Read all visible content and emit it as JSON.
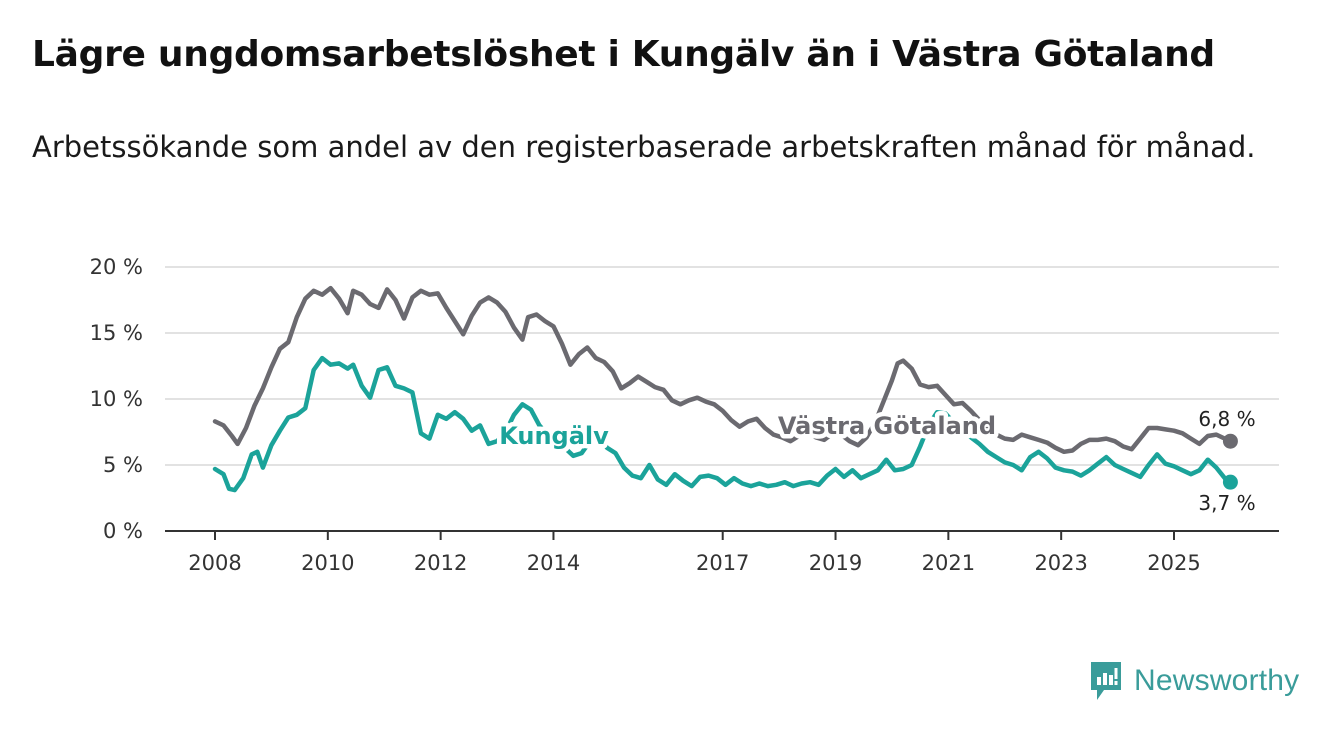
{
  "header": {
    "title": "Lägre ungdomsarbetslöshet i Kungälv än i Västra Götaland",
    "subtitle": "Arbetssökande som andel av den registerbaserade arbetskraften månad för månad."
  },
  "brand": {
    "name": "Newsworthy",
    "icon": "newsworthy-logo-icon",
    "color": "#3a9c9a"
  },
  "chart_data": {
    "type": "line",
    "title": "Lägre ungdomsarbetslöshet i Kungälv än i Västra Götaland",
    "subtitle": "Arbetssökande som andel av den registerbaserade arbetskraften månad för månad.",
    "xlabel": "",
    "ylabel": "",
    "xlim": [
      2008,
      2026.25
    ],
    "ylim": [
      0,
      20
    ],
    "y_ticks": [
      0,
      5,
      10,
      15,
      20
    ],
    "y_tick_labels": [
      "0 %",
      "5 %",
      "10 %",
      "15 %",
      "20 %"
    ],
    "x_ticks": [
      2008,
      2010,
      2012,
      2014,
      2017,
      2019,
      2021,
      2023,
      2025
    ],
    "x_tick_labels": [
      "2008",
      "2010",
      "2012",
      "2014",
      "2017",
      "2019",
      "2021",
      "2023",
      "2025"
    ],
    "grid": true,
    "series": [
      {
        "name": "Västra Götaland",
        "label": "Västra Götaland",
        "color": "#6b6a70",
        "end_label": "6,8 %",
        "x": [
          2008.0,
          2008.15,
          2008.3,
          2008.4,
          2008.55,
          2008.7,
          2008.85,
          2009.0,
          2009.15,
          2009.3,
          2009.45,
          2009.6,
          2009.75,
          2009.9,
          2010.05,
          2010.2,
          2010.35,
          2010.45,
          2010.6,
          2010.75,
          2010.9,
          2011.05,
          2011.2,
          2011.35,
          2011.5,
          2011.65,
          2011.8,
          2011.95,
          2012.1,
          2012.25,
          2012.4,
          2012.55,
          2012.7,
          2012.85,
          2013.0,
          2013.15,
          2013.3,
          2013.45,
          2013.55,
          2013.7,
          2013.85,
          2014.0,
          2014.15,
          2014.3,
          2014.45,
          2014.6,
          2014.75,
          2014.9,
          2015.05,
          2015.2,
          2015.35,
          2015.5,
          2015.65,
          2015.8,
          2015.95,
          2016.1,
          2016.25,
          2016.4,
          2016.55,
          2016.7,
          2016.85,
          2017.0,
          2017.15,
          2017.3,
          2017.45,
          2017.6,
          2017.75,
          2017.9,
          2018.05,
          2018.2,
          2018.35,
          2018.5,
          2018.65,
          2018.8,
          2018.95,
          2019.1,
          2019.25,
          2019.4,
          2019.55,
          2019.7,
          2019.85,
          2020.0,
          2020.1,
          2020.2,
          2020.35,
          2020.5,
          2020.65,
          2020.8,
          2020.95,
          2021.1,
          2021.25,
          2021.4,
          2021.55,
          2021.7,
          2021.85,
          2022.0,
          2022.15,
          2022.3,
          2022.45,
          2022.6,
          2022.75,
          2022.9,
          2023.05,
          2023.2,
          2023.35,
          2023.5,
          2023.65,
          2023.8,
          2023.95,
          2024.1,
          2024.25,
          2024.4,
          2024.55,
          2024.7,
          2024.85,
          2025.0,
          2025.15,
          2025.3,
          2025.45,
          2025.6,
          2025.75,
          2025.9,
          2026.0
        ],
        "values": [
          8.3,
          8.0,
          7.2,
          6.6,
          7.8,
          9.5,
          10.8,
          12.4,
          13.8,
          14.3,
          16.2,
          17.6,
          18.2,
          17.9,
          18.4,
          17.6,
          16.5,
          18.2,
          17.9,
          17.2,
          16.9,
          18.3,
          17.5,
          16.1,
          17.7,
          18.2,
          17.9,
          18.0,
          16.9,
          15.9,
          14.9,
          16.3,
          17.3,
          17.7,
          17.3,
          16.6,
          15.4,
          14.5,
          16.2,
          16.4,
          15.9,
          15.5,
          14.2,
          12.6,
          13.4,
          13.9,
          13.1,
          12.8,
          12.1,
          10.8,
          11.2,
          11.7,
          11.3,
          10.9,
          10.7,
          9.9,
          9.6,
          9.9,
          10.1,
          9.8,
          9.6,
          9.1,
          8.4,
          7.9,
          8.3,
          8.5,
          7.8,
          7.3,
          7.1,
          6.8,
          7.2,
          7.6,
          7.1,
          6.9,
          7.4,
          7.3,
          6.8,
          6.5,
          7.1,
          8.2,
          9.8,
          11.4,
          12.7,
          12.9,
          12.3,
          11.1,
          10.9,
          11.0,
          10.3,
          9.6,
          9.7,
          9.1,
          8.4,
          7.6,
          7.3,
          7.0,
          6.9,
          7.3,
          7.1,
          6.9,
          6.7,
          6.3,
          6.0,
          6.1,
          6.6,
          6.9,
          6.9,
          7.0,
          6.8,
          6.4,
          6.2,
          7.0,
          7.8,
          7.8,
          7.7,
          7.6,
          7.4,
          7.0,
          6.6,
          7.2,
          7.3,
          7.0,
          6.8
        ]
      },
      {
        "name": "Kungälv",
        "label": "Kungälv",
        "color": "#1ba39a",
        "end_label": "3,7 %",
        "x": [
          2008.0,
          2008.15,
          2008.25,
          2008.35,
          2008.5,
          2008.65,
          2008.75,
          2008.85,
          2009.0,
          2009.15,
          2009.3,
          2009.45,
          2009.6,
          2009.75,
          2009.9,
          2010.05,
          2010.2,
          2010.35,
          2010.45,
          2010.6,
          2010.75,
          2010.9,
          2011.05,
          2011.2,
          2011.35,
          2011.5,
          2011.65,
          2011.8,
          2011.95,
          2012.1,
          2012.25,
          2012.4,
          2012.55,
          2012.7,
          2012.85,
          2013.0,
          2013.15,
          2013.3,
          2013.45,
          2013.6,
          2013.75,
          2013.9,
          2014.05,
          2014.2,
          2014.35,
          2014.5,
          2014.65,
          2014.8,
          2014.95,
          2015.1,
          2015.25,
          2015.4,
          2015.55,
          2015.7,
          2015.85,
          2016.0,
          2016.15,
          2016.3,
          2016.45,
          2016.6,
          2016.75,
          2016.9,
          2017.05,
          2017.2,
          2017.35,
          2017.5,
          2017.65,
          2017.8,
          2017.95,
          2018.1,
          2018.25,
          2018.4,
          2018.55,
          2018.7,
          2018.85,
          2019.0,
          2019.15,
          2019.3,
          2019.45,
          2019.6,
          2019.75,
          2019.9,
          2020.05,
          2020.2,
          2020.35,
          2020.5,
          2020.65,
          2020.8,
          2020.95,
          2021.1,
          2021.25,
          2021.4,
          2021.55,
          2021.7,
          2021.85,
          2022.0,
          2022.15,
          2022.3,
          2022.45,
          2022.6,
          2022.75,
          2022.9,
          2023.05,
          2023.2,
          2023.35,
          2023.5,
          2023.65,
          2023.8,
          2023.95,
          2024.1,
          2024.25,
          2024.4,
          2024.55,
          2024.7,
          2024.85,
          2025.0,
          2025.15,
          2025.3,
          2025.45,
          2025.6,
          2025.75,
          2025.9,
          2026.0
        ],
        "values": [
          4.7,
          4.3,
          3.2,
          3.1,
          4.0,
          5.8,
          6.0,
          4.8,
          6.5,
          7.6,
          8.6,
          8.8,
          9.3,
          12.2,
          13.1,
          12.6,
          12.7,
          12.3,
          12.6,
          11.0,
          10.1,
          12.2,
          12.4,
          11.0,
          10.8,
          10.5,
          7.4,
          7.0,
          8.8,
          8.5,
          9.0,
          8.5,
          7.6,
          8.0,
          6.6,
          6.8,
          7.5,
          8.8,
          9.6,
          9.2,
          8.0,
          7.3,
          6.9,
          6.3,
          5.7,
          5.9,
          6.8,
          7.1,
          6.3,
          5.9,
          4.8,
          4.2,
          4.0,
          5.0,
          3.9,
          3.5,
          4.3,
          3.8,
          3.4,
          4.1,
          4.2,
          4.0,
          3.5,
          4.0,
          3.6,
          3.4,
          3.6,
          3.4,
          3.5,
          3.7,
          3.4,
          3.6,
          3.7,
          3.5,
          4.2,
          4.7,
          4.1,
          4.6,
          4.0,
          4.3,
          4.6,
          5.4,
          4.6,
          4.7,
          5.0,
          6.4,
          8.0,
          9.0,
          8.9,
          8.2,
          7.6,
          7.1,
          6.6,
          6.0,
          5.6,
          5.2,
          5.0,
          4.6,
          5.6,
          6.0,
          5.5,
          4.8,
          4.6,
          4.5,
          4.2,
          4.6,
          5.1,
          5.6,
          5.0,
          4.7,
          4.4,
          4.1,
          5.0,
          5.8,
          5.1,
          4.9,
          4.6,
          4.3,
          4.6,
          5.4,
          4.8,
          4.0,
          3.7
        ]
      }
    ]
  }
}
